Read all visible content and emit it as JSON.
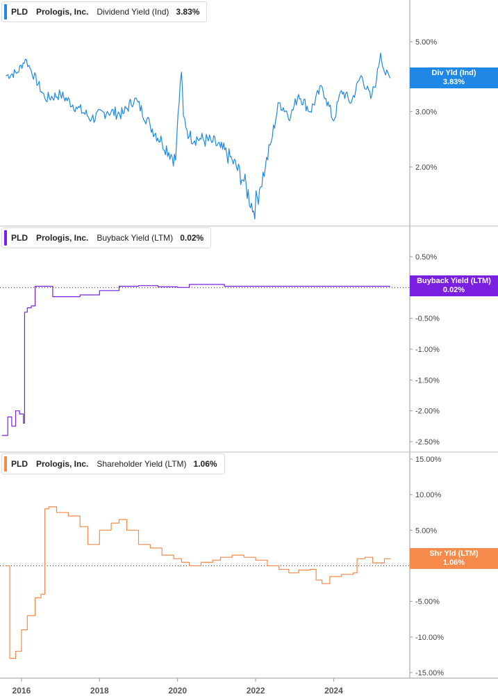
{
  "colors": {
    "p1": "#1f87e5",
    "p2": "#7a1fe0",
    "p3": "#f58a4b",
    "grid": "#cccccc",
    "axis": "#555555"
  },
  "panels": [
    {
      "ticker": "PLD",
      "company": "Prologis, Inc.",
      "metric": "Dividend Yield (Ind)",
      "value": "3.83%",
      "badge_label": "Div Yld (Ind)",
      "badge_value": "3.83%"
    },
    {
      "ticker": "PLD",
      "company": "Prologis, Inc.",
      "metric": "Buyback Yield (LTM)",
      "value": "0.02%",
      "badge_label": "Buyback Yield (LTM)",
      "badge_value": "0.02%"
    },
    {
      "ticker": "PLD",
      "company": "Prologis, Inc.",
      "metric": "Shareholder Yield (LTM)",
      "value": "1.06%",
      "badge_label": "Shr Yld (LTM)",
      "badge_value": "1.06%"
    }
  ],
  "chart_data": [
    {
      "type": "line",
      "title": "Dividend Yield (Ind)",
      "series": [
        {
          "name": "Dividend Yield (Ind)",
          "color": "#1f87e5",
          "x": [
            2015.6,
            2015.9,
            2016.1,
            2016.25,
            2016.6,
            2017.0,
            2017.4,
            2017.8,
            2018.2,
            2018.6,
            2018.9,
            2019.3,
            2019.6,
            2019.95,
            2020.1,
            2020.15,
            2020.3,
            2020.6,
            2020.9,
            2021.1,
            2021.4,
            2021.7,
            2021.95,
            2022.1,
            2022.25,
            2022.4,
            2022.6,
            2022.9,
            2023.1,
            2023.4,
            2023.7,
            2023.8,
            2024.0,
            2024.2,
            2024.45,
            2024.7,
            2024.95,
            2025.1,
            2025.2,
            2025.3,
            2025.45
          ],
          "y": [
            3.9,
            4.0,
            4.4,
            4.05,
            3.3,
            3.4,
            3.1,
            2.85,
            3.0,
            2.95,
            3.3,
            2.7,
            2.4,
            2.1,
            4.0,
            2.9,
            2.5,
            2.45,
            2.4,
            2.3,
            2.1,
            1.8,
            1.45,
            1.7,
            2.0,
            2.4,
            3.2,
            2.9,
            3.4,
            3.0,
            3.6,
            3.3,
            2.8,
            3.5,
            3.2,
            3.9,
            3.3,
            3.8,
            4.6,
            4.0,
            3.83
          ]
        }
      ],
      "y_ticks": [
        "5.00%",
        "3.00%",
        "2.00%"
      ],
      "ylim": [
        1.2,
        5.8
      ]
    },
    {
      "type": "line",
      "title": "Buyback Yield (LTM)",
      "series": [
        {
          "name": "Buyback Yield (LTM)",
          "color": "#7a1fe0",
          "x": [
            2015.5,
            2015.65,
            2015.75,
            2015.85,
            2015.95,
            2016.05,
            2016.08,
            2016.15,
            2016.25,
            2016.35,
            2016.8,
            2017.5,
            2018.0,
            2018.5,
            2019.0,
            2019.5,
            2020.0,
            2020.3,
            2021.0,
            2021.2,
            2021.5,
            2022.0,
            2022.5,
            2023.0,
            2023.5,
            2024.0,
            2024.5,
            2025.0,
            2025.45
          ],
          "y": [
            -2.4,
            -2.1,
            -2.25,
            -2.0,
            -2.05,
            -2.2,
            -0.4,
            -0.33,
            -0.3,
            0.02,
            -0.15,
            -0.12,
            -0.05,
            0.02,
            0.03,
            0.01,
            0.0,
            0.05,
            0.05,
            0.02,
            0.02,
            0.02,
            0.02,
            0.02,
            0.02,
            0.02,
            0.02,
            0.02,
            0.02
          ]
        }
      ],
      "y_ticks": [
        "0.50%",
        "-0.50%",
        "-1.00%",
        "-1.50%",
        "-2.00%",
        "-2.50%"
      ],
      "ylim": [
        -2.6,
        0.6
      ]
    },
    {
      "type": "line",
      "title": "Shareholder Yield (LTM)",
      "series": [
        {
          "name": "Shareholder Yield (LTM)",
          "color": "#f58a4b",
          "x": [
            2015.6,
            2015.7,
            2015.85,
            2016.0,
            2016.15,
            2016.35,
            2016.5,
            2016.6,
            2016.7,
            2016.9,
            2017.2,
            2017.5,
            2017.7,
            2018.0,
            2018.3,
            2018.5,
            2018.7,
            2019.0,
            2019.3,
            2019.6,
            2019.9,
            2020.1,
            2020.3,
            2020.6,
            2020.9,
            2021.1,
            2021.4,
            2021.7,
            2022.0,
            2022.3,
            2022.6,
            2022.85,
            2023.1,
            2023.4,
            2023.55,
            2023.7,
            2023.9,
            2024.2,
            2024.5,
            2024.6,
            2024.8,
            2025.0,
            2025.3,
            2025.45
          ],
          "y": [
            0.0,
            -13.0,
            -12.0,
            -9.0,
            -7.0,
            -4.5,
            -4.0,
            8.0,
            8.3,
            7.5,
            7.0,
            5.5,
            3.0,
            5.0,
            6.0,
            6.5,
            5.0,
            3.0,
            2.5,
            1.5,
            1.0,
            0.5,
            0.0,
            0.5,
            0.8,
            1.2,
            1.5,
            1.2,
            0.8,
            0.0,
            -0.5,
            -1.0,
            -0.6,
            -0.5,
            -2.0,
            -2.5,
            -1.5,
            -1.2,
            -1.0,
            1.0,
            1.2,
            0.4,
            1.0,
            1.06
          ]
        }
      ],
      "y_ticks": [
        "15.00%",
        "10.00%",
        "5.00%",
        "-5.00%",
        "-10.00%",
        "-15.00%"
      ],
      "ylim": [
        -16,
        16
      ]
    }
  ],
  "x_axis": {
    "labels": [
      "2016",
      "2018",
      "2020",
      "2022",
      "2024"
    ],
    "min": 2015.45,
    "max": 2025.95
  }
}
